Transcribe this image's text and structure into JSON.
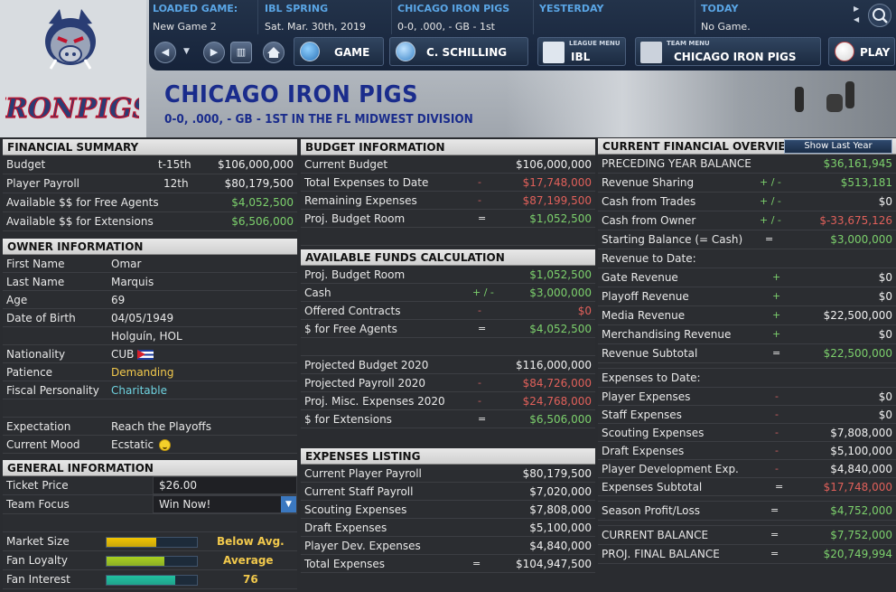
{
  "topbar": {
    "loaded_game_label": "LOADED GAME:",
    "loaded_game_value": "New Game 2",
    "season_label": "IBL SPRING",
    "season_value": "Sat. Mar. 30th, 2019",
    "team_label": "CHICAGO IRON PIGS",
    "team_value": "0-0, .000, - GB - 1st",
    "yesterday_label": "YESTERDAY",
    "yesterday_value": "",
    "today_label": "TODAY",
    "today_value": "No Game."
  },
  "nav": {
    "game_label": "GAME",
    "manager_label": "C. SCHILLING",
    "league_menu_small": "LEAGUE MENU",
    "league_menu_label": "IBL",
    "team_menu_small": "TEAM MENU",
    "team_menu_label": "CHICAGO IRON PIGS",
    "play_label": "PLAY"
  },
  "logo": {
    "wordmark": "IRONPIGS"
  },
  "header": {
    "title": "CHICAGO IRON PIGS",
    "subtitle": "0-0, .000, - GB - 1ST IN THE FL MIDWEST DIVISION"
  },
  "financial_summary": {
    "title": "FINANCIAL SUMMARY",
    "rows": [
      {
        "label": "Budget",
        "rank": "t-15th",
        "value": "$106,000,000"
      },
      {
        "label": "Player Payroll",
        "rank": "12th",
        "value": "$80,179,500"
      },
      {
        "label": "Available $$ for Free Agents",
        "rank": "",
        "value": "$4,052,500"
      },
      {
        "label": "Available $$ for Extensions",
        "rank": "",
        "value": "$6,506,000"
      }
    ]
  },
  "owner_information": {
    "title": "OWNER INFORMATION",
    "first_name_label": "First Name",
    "first_name": "Omar",
    "last_name_label": "Last Name",
    "last_name": "Marquis",
    "age_label": "Age",
    "age": "69",
    "dob_label": "Date of Birth",
    "dob": "04/05/1949",
    "birthplace": "Holguín, HOL",
    "nationality_label": "Nationality",
    "nationality": "CUB",
    "patience_label": "Patience",
    "patience": "Demanding",
    "fiscal_label": "Fiscal Personality",
    "fiscal": "Charitable",
    "expectation_label": "Expectation",
    "expectation": "Reach the Playoffs",
    "mood_label": "Current Mood",
    "mood": "Ecstatic"
  },
  "general_information": {
    "title": "GENERAL INFORMATION",
    "ticket_label": "Ticket Price",
    "ticket_value": "$26.00",
    "focus_label": "Team Focus",
    "focus_value": "Win Now!",
    "market_label": "Market Size",
    "market_value": "Below Avg.",
    "market_level": 0.55,
    "loyalty_label": "Fan Loyalty",
    "loyalty_value": "Average",
    "loyalty_level": 0.64,
    "interest_label": "Fan Interest",
    "interest_value": "76",
    "interest_level": 0.76,
    "colors": {
      "market": "#f2c400",
      "loyalty": "#a8d020",
      "interest": "#20c0a0"
    }
  },
  "budget_information": {
    "title": "BUDGET INFORMATION",
    "rows": [
      {
        "label": "Current Budget",
        "op": "",
        "value": "$106,000,000",
        "color": "w"
      },
      {
        "label": "Total Expenses to Date",
        "op": "-",
        "value": "$17,748,000",
        "color": "r"
      },
      {
        "label": "Remaining Expenses",
        "op": "-",
        "value": "$87,199,500",
        "color": "r"
      },
      {
        "label": "Proj. Budget Room",
        "op": "=",
        "value": "$1,052,500",
        "color": "g"
      }
    ]
  },
  "available_funds": {
    "title": "AVAILABLE FUNDS CALCULATION",
    "rows": [
      {
        "label": "Proj. Budget Room",
        "op": "",
        "value": "$1,052,500",
        "color": "g"
      },
      {
        "label": "Cash",
        "op": "+ / -",
        "value": "$3,000,000",
        "color": "g"
      },
      {
        "label": "Offered Contracts",
        "op": "-",
        "value": "$0",
        "color": "r"
      },
      {
        "label": "$ for Free Agents",
        "op": "=",
        "value": "$4,052,500",
        "color": "g"
      }
    ],
    "rows2": [
      {
        "label": "Projected Budget 2020",
        "op": "",
        "value": "$116,000,000",
        "color": "w"
      },
      {
        "label": "Projected Payroll 2020",
        "op": "-",
        "value": "$84,726,000",
        "color": "r"
      },
      {
        "label": "Proj. Misc. Expenses 2020",
        "op": "-",
        "value": "$24,768,000",
        "color": "r"
      },
      {
        "label": "$ for Extensions",
        "op": "=",
        "value": "$6,506,000",
        "color": "g"
      }
    ]
  },
  "expenses_listing": {
    "title": "EXPENSES LISTING",
    "rows": [
      {
        "label": "Current Player Payroll",
        "op": "",
        "value": "$80,179,500"
      },
      {
        "label": "Current Staff Payroll",
        "op": "",
        "value": "$7,020,000"
      },
      {
        "label": "Scouting Expenses",
        "op": "",
        "value": "$7,808,000"
      },
      {
        "label": "Draft Expenses",
        "op": "",
        "value": "$5,100,000"
      },
      {
        "label": "Player Dev. Expenses",
        "op": "",
        "value": "$4,840,000"
      },
      {
        "label": "Total Expenses",
        "op": "=",
        "value": "$104,947,500"
      }
    ]
  },
  "current_overview": {
    "title": "CURRENT FINANCIAL OVERVIEW",
    "show_button": "Show Last Year",
    "rows_a": [
      {
        "label": "PRECEDING YEAR BALANCE",
        "op": "",
        "value": "$36,161,945",
        "color": "g"
      },
      {
        "label": "Revenue Sharing",
        "op": "+ / -",
        "value": "$513,181",
        "color": "g"
      },
      {
        "label": "Cash from Trades",
        "op": "+ / -",
        "value": "$0",
        "color": "w"
      },
      {
        "label": "Cash from Owner",
        "op": "+ / -",
        "value": "$-33,675,126",
        "color": "r"
      },
      {
        "label": "Starting Balance (= Cash)",
        "op": "=",
        "value": "$3,000,000",
        "color": "g"
      }
    ],
    "revenue_header": "Revenue to Date:",
    "rows_b": [
      {
        "label": "Gate Revenue",
        "op": "+",
        "value": "$0",
        "color": "w"
      },
      {
        "label": "Playoff Revenue",
        "op": "+",
        "value": "$0",
        "color": "w"
      },
      {
        "label": "Media Revenue",
        "op": "+",
        "value": "$22,500,000",
        "color": "w"
      },
      {
        "label": "Merchandising Revenue",
        "op": "+",
        "value": "$0",
        "color": "w"
      },
      {
        "label": "Revenue Subtotal",
        "op": "=",
        "value": "$22,500,000",
        "color": "g"
      }
    ],
    "expenses_header": "Expenses to Date:",
    "rows_c": [
      {
        "label": "Player Expenses",
        "op": "-",
        "value": "$0",
        "color": "w"
      },
      {
        "label": "Staff Expenses",
        "op": "-",
        "value": "$0",
        "color": "w"
      },
      {
        "label": "Scouting Expenses",
        "op": "-",
        "value": "$7,808,000",
        "color": "w"
      },
      {
        "label": "Draft Expenses",
        "op": "-",
        "value": "$5,100,000",
        "color": "w"
      },
      {
        "label": "Player Development Exp.",
        "op": "-",
        "value": "$4,840,000",
        "color": "w"
      },
      {
        "label": "Expenses Subtotal",
        "op": "=",
        "value": "$17,748,000",
        "color": "r"
      }
    ],
    "profit_label": "Season Profit/Loss",
    "profit_op": "=",
    "profit_value": "$4,752,000",
    "current_label": "CURRENT BALANCE",
    "current_op": "=",
    "current_value": "$7,752,000",
    "proj_label": "PROJ. FINAL BALANCE",
    "proj_op": "=",
    "proj_value": "$20,749,994"
  }
}
